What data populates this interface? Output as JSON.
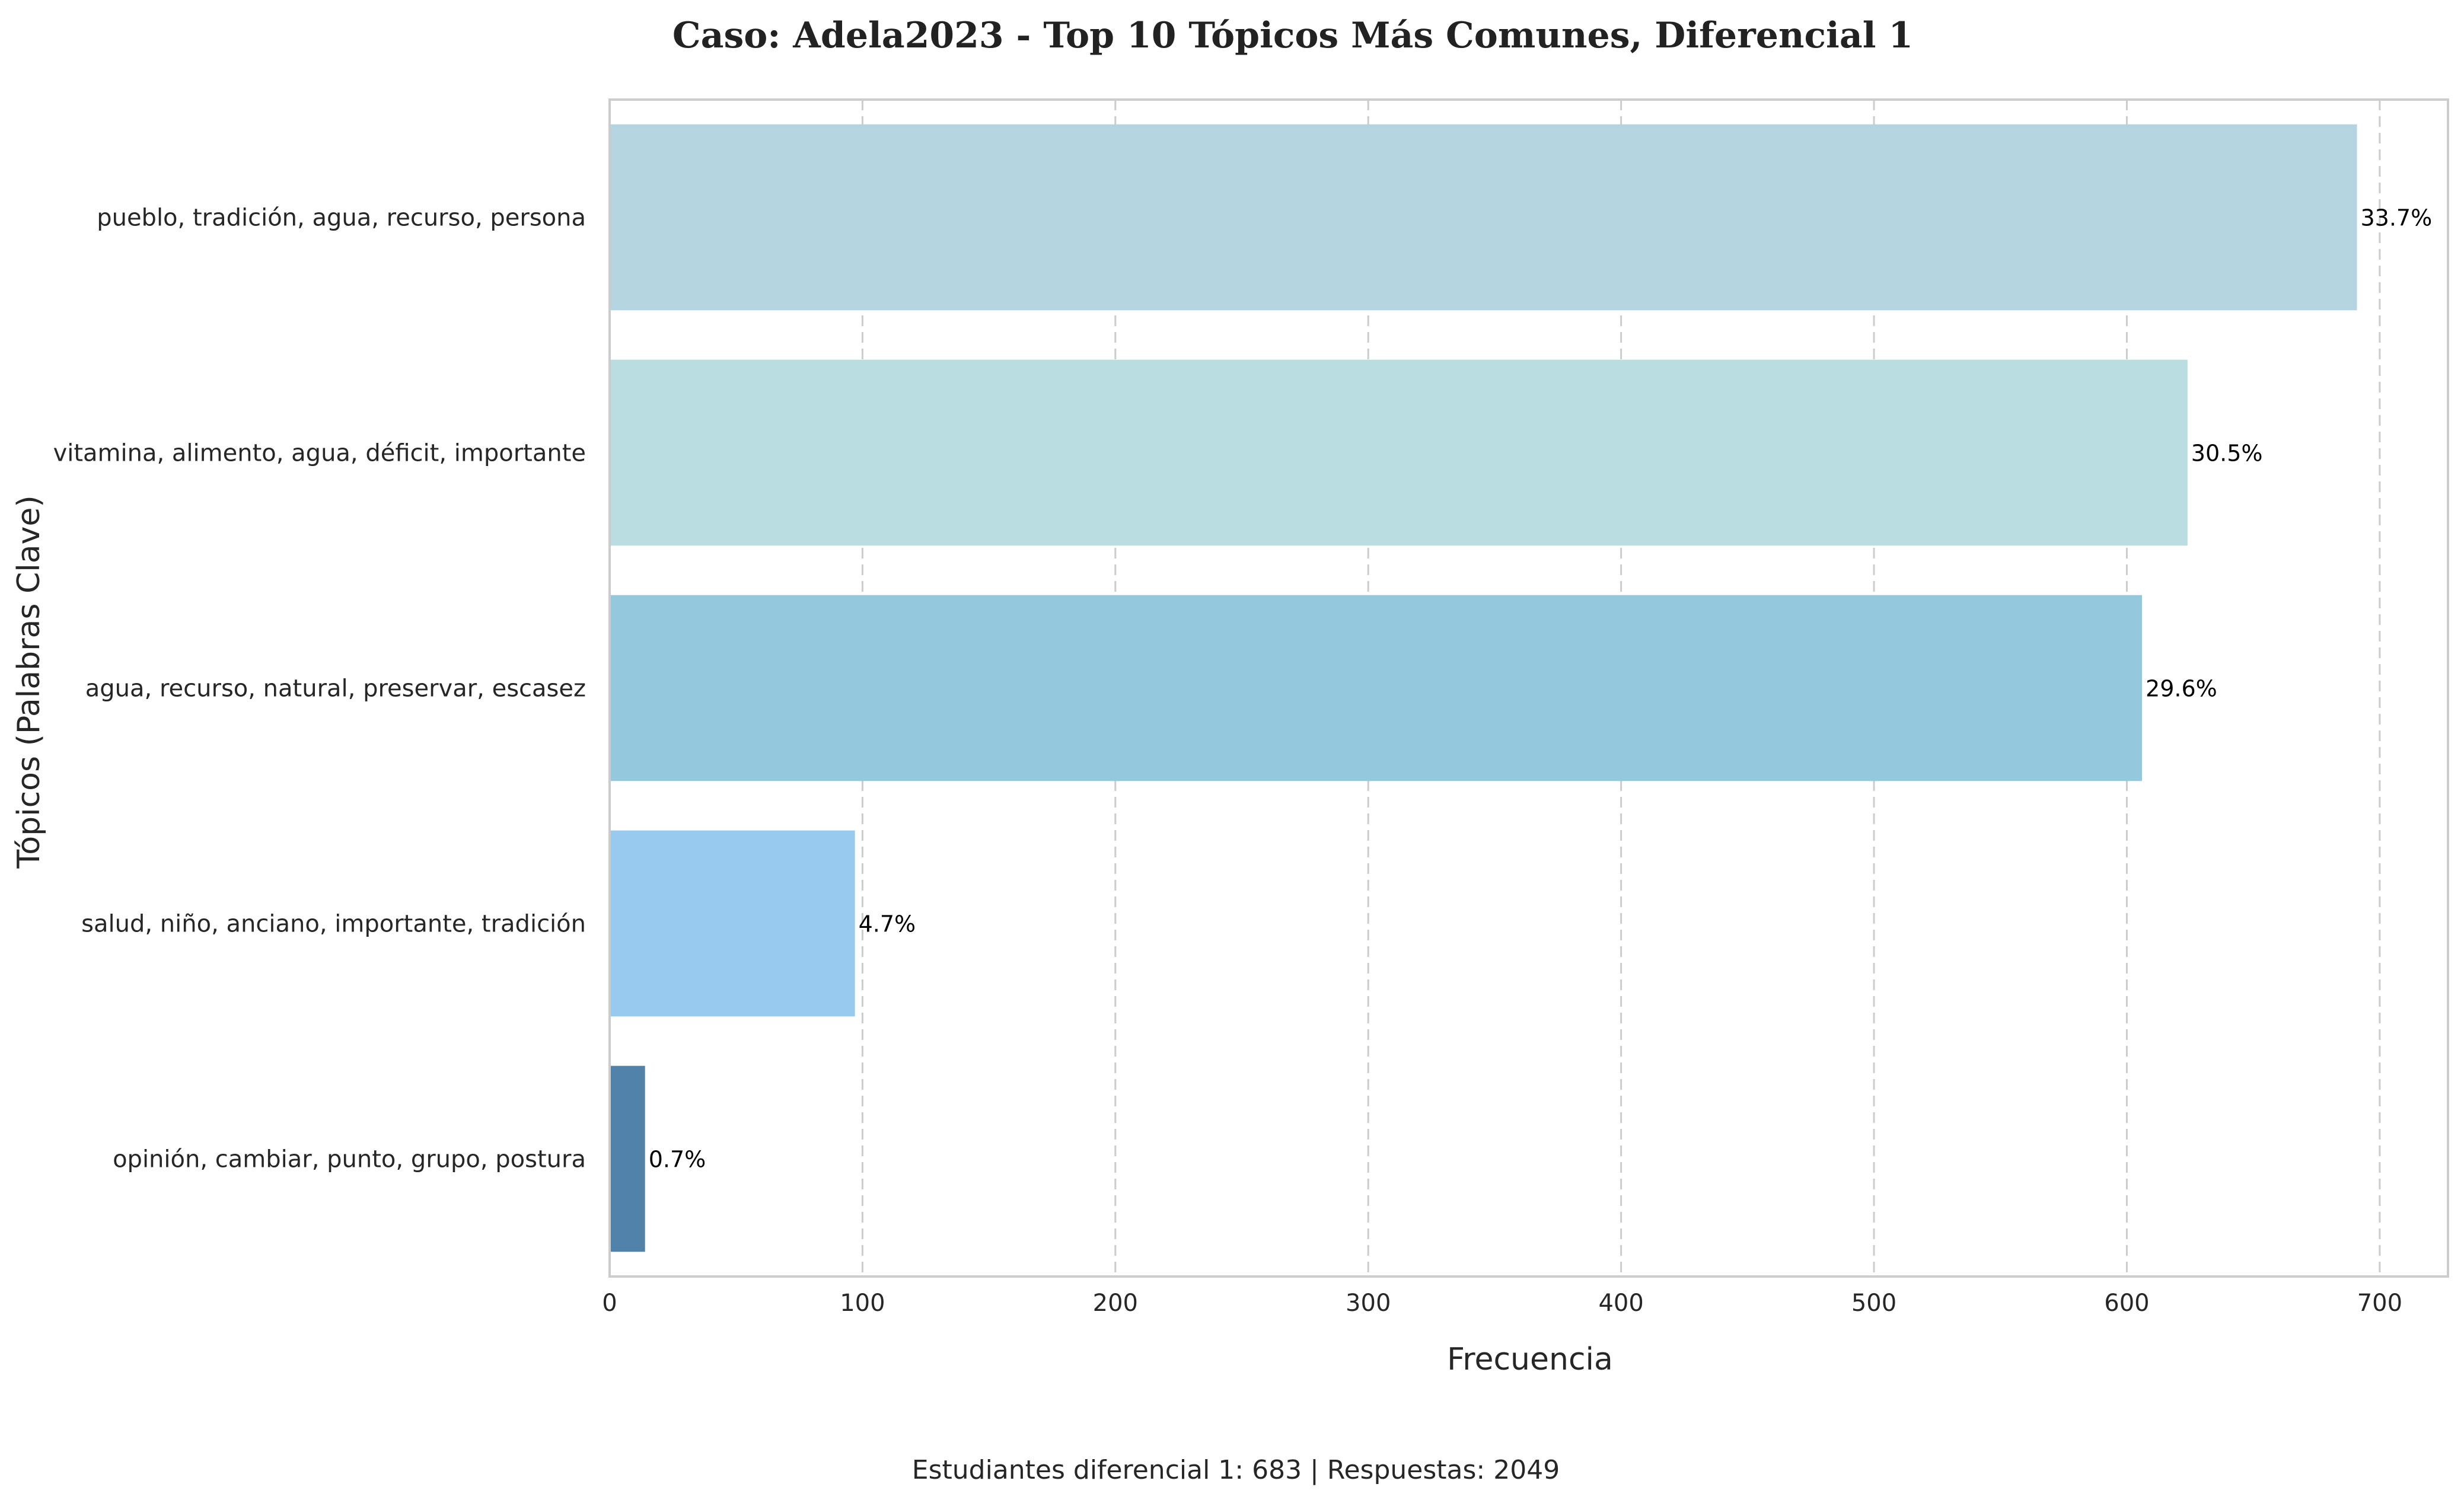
{
  "chart_data": {
    "type": "bar",
    "orientation": "horizontal",
    "title": "Caso: Adela2023 - Top 10 Tópicos Más Comunes, Diferencial 1",
    "xlabel": "Frecuencia",
    "ylabel": "Tópicos (Palabras Clave)",
    "xlim": [
      0,
      727
    ],
    "xticks": [
      0,
      100,
      200,
      300,
      400,
      500,
      600,
      700
    ],
    "grid": "x, dashed",
    "categories": [
      "pueblo, tradición, agua, recurso, persona",
      "vitamina, alimento, agua, déficit, importante",
      "agua, recurso, natural, preservar, escasez",
      "salud, niño, anciano, importante, tradición",
      "opinión, cambiar, punto, grupo, postura"
    ],
    "values": [
      691,
      624,
      606,
      97,
      14
    ],
    "data_labels": [
      "33.7%",
      "30.5%",
      "29.6%",
      "4.7%",
      "0.7%"
    ],
    "colors": [
      "#b4d4e0",
      "#b9dde1",
      "#94c8dd",
      "#97caee",
      "#5082aa"
    ],
    "footer": "Estudiantes diferencial 1: 683 | Respuestas: 2049"
  }
}
